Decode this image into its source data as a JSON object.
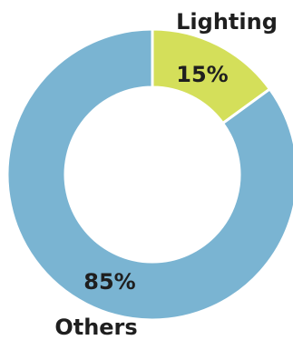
{
  "chart_data": {
    "type": "pie",
    "style": "donut",
    "categories": [
      "Lighting",
      "Others"
    ],
    "values": [
      15,
      85
    ],
    "value_labels": [
      "15%",
      "85%"
    ],
    "colors": {
      "Lighting": "#d4df5a",
      "Others": "#7ab4d2"
    },
    "start": "top",
    "legend": "none"
  }
}
